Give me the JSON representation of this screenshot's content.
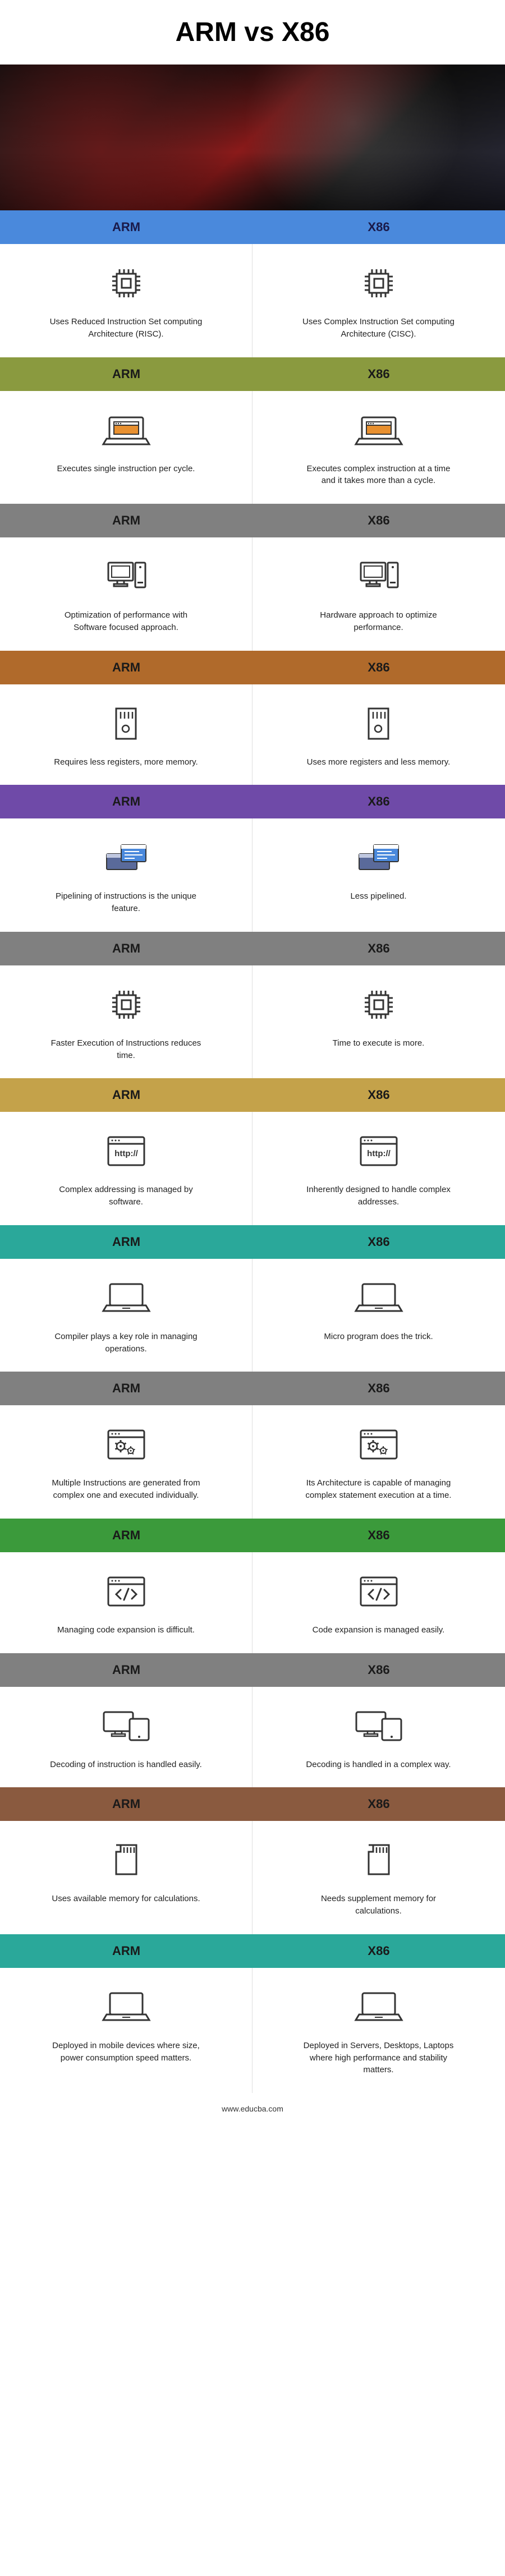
{
  "title": "ARM vs X86",
  "footer": "www.educba.com",
  "leftLabel": "ARM",
  "rightLabel": "X86",
  "headerColors": [
    "#4a89dc",
    "#8a9a3f",
    "#808080",
    "#b06a2b",
    "#6f4aa8",
    "#808080",
    "#c4a24a",
    "#2aa89a",
    "#808080",
    "#3b9a3b",
    "#808080",
    "#8a5a3f",
    "#2aa89a"
  ],
  "headerTextColors": [
    "#1a1a4a",
    "#1a1a1a",
    "#1a1a1a",
    "#1a1a1a",
    "#1a1a1a",
    "#1a1a1a",
    "#1a1a1a",
    "#1a1a1a",
    "#1a1a1a",
    "#1a1a1a",
    "#1a1a1a",
    "#1a1a1a",
    "#1a1a1a"
  ],
  "rows": [
    {
      "icon": "chip",
      "l": "Uses Reduced Instruction Set computing Architecture (RISC).",
      "r": "Uses Complex Instruction Set computing Architecture (CISC)."
    },
    {
      "icon": "laptop-window",
      "l": "Executes single instruction per cycle.",
      "r": "Executes complex instruction at a time and it takes more than a cycle."
    },
    {
      "icon": "desktop",
      "l": "Optimization of performance with Software focused approach.",
      "r": "Hardware approach to optimize performance."
    },
    {
      "icon": "memory-card",
      "l": "Requires less registers, more memory.",
      "r": "Uses more registers and less memory."
    },
    {
      "icon": "pipeline",
      "l": "Pipelining of instructions is the unique feature.",
      "r": "Less pipelined."
    },
    {
      "icon": "chip",
      "l": "Faster Execution of Instructions reduces time.",
      "r": "Time to execute is more."
    },
    {
      "icon": "http",
      "l": "Complex addressing is managed by software.",
      "r": "Inherently designed to handle complex addresses."
    },
    {
      "icon": "laptop",
      "l": "Compiler plays a key role in managing operations.",
      "r": "Micro program does the trick."
    },
    {
      "icon": "gears-window",
      "l": "Multiple Instructions are generated from complex one and executed individually.",
      "r": "Its Architecture is capable of managing complex statement execution at a time."
    },
    {
      "icon": "code",
      "l": "Managing code expansion is difficult.",
      "r": "Code expansion is managed easily."
    },
    {
      "icon": "devices",
      "l": "Decoding of instruction is handled easily.",
      "r": "Decoding is handled in a complex way."
    },
    {
      "icon": "sd",
      "l": "Uses available memory for calculations.",
      "r": "Needs supplement memory for calculations."
    },
    {
      "icon": "laptop",
      "l": "Deployed in mobile devices where size, power consumption speed matters.",
      "r": "Deployed in Servers, Desktops, Laptops where high performance and stability matters."
    }
  ]
}
